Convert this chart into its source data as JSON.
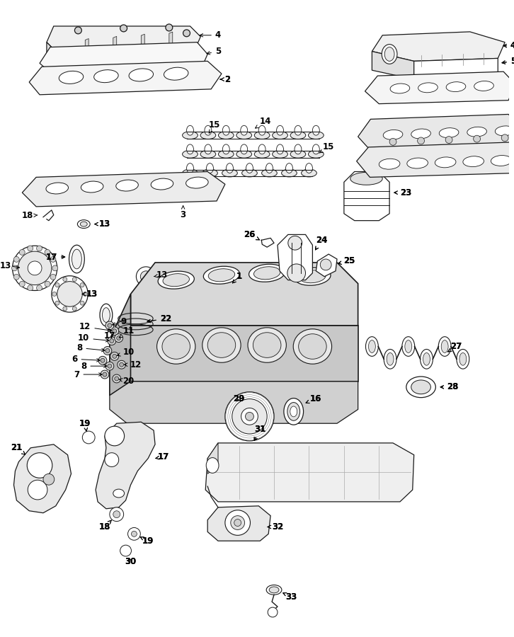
{
  "background_color": "#ffffff",
  "line_color": "#1a1a1a",
  "label_fontsize": 8.5,
  "label_fontweight": "bold"
}
